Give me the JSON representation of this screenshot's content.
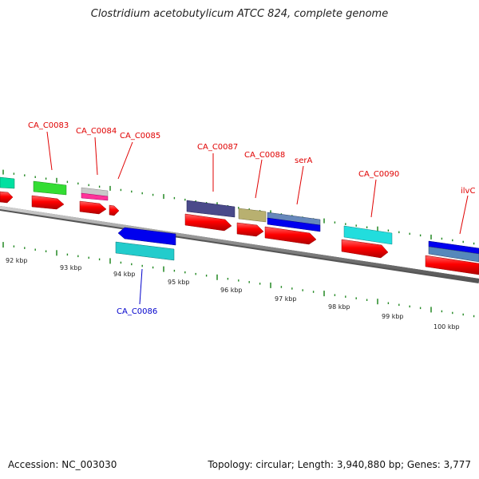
{
  "title": "Clostridium acetobutylicum ATCC 824, complete genome",
  "footer": {
    "accession": "Accession: NC_003030",
    "topology": "Topology: circular; Length: 3,940,880 bp; Genes: 3,777"
  },
  "scale": {
    "tick_labels": [
      "92 kbp",
      "93 kbp",
      "94 kbp",
      "95 kbp",
      "96 kbp",
      "97 kbp",
      "98 kbp",
      "99 kbp",
      "100 kbp"
    ]
  },
  "genes": {
    "forward_labels": [
      "CA_C0083",
      "CA_C0084",
      "CA_C0085",
      "CA_C0087",
      "CA_C0088",
      "serA",
      "CA_C0090",
      "ilvC"
    ],
    "reverse_labels": [
      "CA_C0086"
    ]
  },
  "colors": {
    "forward_label": "#e00000",
    "reverse_label": "#0000cc",
    "cds": "#ff0000",
    "backbone": "#888888",
    "ticks": "#228822"
  }
}
